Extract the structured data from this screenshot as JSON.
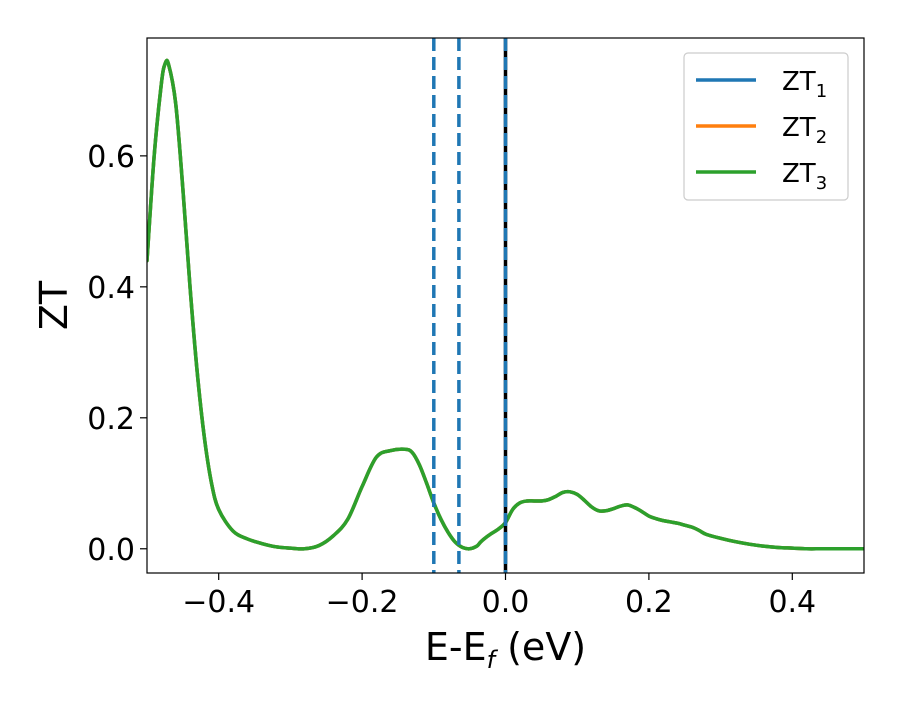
{
  "chart_data": {
    "type": "line",
    "title": "",
    "xlabel": {
      "main": "E-E",
      "sub": "f",
      "suffix": " (eV)"
    },
    "ylabel": "ZT",
    "xlim": [
      -0.5,
      0.5
    ],
    "ylim": [
      -0.037,
      0.78
    ],
    "x_ticks": [
      {
        "value": -0.4,
        "label": "−0.4"
      },
      {
        "value": -0.2,
        "label": "−0.2"
      },
      {
        "value": 0.0,
        "label": "0.0"
      },
      {
        "value": 0.2,
        "label": "0.2"
      },
      {
        "value": 0.4,
        "label": "0.4"
      }
    ],
    "y_ticks": [
      {
        "value": 0.0,
        "label": "0.0"
      },
      {
        "value": 0.2,
        "label": "0.2"
      },
      {
        "value": 0.4,
        "label": "0.4"
      },
      {
        "value": 0.6,
        "label": "0.6"
      }
    ],
    "grid": false,
    "legend_position": "top-right",
    "series": [
      {
        "name": "ZT",
        "name_sub": "1",
        "color": "#1f77b4",
        "x": [
          -0.5,
          -0.49,
          -0.48,
          -0.475,
          -0.47,
          -0.46,
          -0.45,
          -0.44,
          -0.43,
          -0.42,
          -0.41,
          -0.4,
          -0.39,
          -0.38,
          -0.37,
          -0.36,
          -0.35,
          -0.34,
          -0.33,
          -0.32,
          -0.31,
          -0.3,
          -0.29,
          -0.28,
          -0.27,
          -0.26,
          -0.25,
          -0.24,
          -0.23,
          -0.22,
          -0.21,
          -0.2,
          -0.19,
          -0.18,
          -0.17,
          -0.16,
          -0.15,
          -0.14,
          -0.135,
          -0.13,
          -0.12,
          -0.11,
          -0.1,
          -0.09,
          -0.08,
          -0.07,
          -0.06,
          -0.05,
          -0.04,
          -0.035,
          -0.03,
          -0.02,
          -0.01,
          0.0,
          0.01,
          0.02,
          0.03,
          0.04,
          0.05,
          0.06,
          0.07,
          0.08,
          0.09,
          0.1,
          0.11,
          0.12,
          0.13,
          0.14,
          0.15,
          0.16,
          0.17,
          0.18,
          0.19,
          0.2,
          0.21,
          0.22,
          0.23,
          0.24,
          0.25,
          0.26,
          0.27,
          0.28,
          0.3,
          0.32,
          0.34,
          0.36,
          0.38,
          0.4,
          0.42,
          0.44,
          0.46,
          0.48,
          0.5
        ],
        "y": [
          0.44,
          0.6,
          0.71,
          0.74,
          0.74,
          0.68,
          0.55,
          0.4,
          0.27,
          0.17,
          0.1,
          0.065,
          0.043,
          0.029,
          0.02,
          0.014,
          0.01,
          0.006,
          0.003,
          0.001,
          0.0,
          0.001,
          0.006,
          0.015,
          0.028,
          0.045,
          0.067,
          0.093,
          0.118,
          0.138,
          0.15,
          0.153,
          0.145,
          0.126,
          0.102,
          0.075,
          0.05,
          0.028,
          0.017,
          0.01,
          0.001,
          0.003,
          0.012,
          0.026,
          0.041,
          0.056,
          0.068,
          0.074,
          0.075,
          0.075,
          0.075,
          0.075,
          0.078,
          0.083,
          0.087,
          0.087,
          0.08,
          0.07,
          0.062,
          0.058,
          0.058,
          0.062,
          0.066,
          0.067,
          0.063,
          0.056,
          0.049,
          0.045,
          0.042,
          0.04,
          0.037,
          0.034,
          0.03,
          0.024,
          0.018,
          0.012,
          0.008,
          0.005,
          0.003,
          0.001,
          0.001,
          0.0,
          0.0,
          0.0,
          0.0,
          0.0,
          0.0,
          0.0,
          0.0,
          0.0,
          0.0,
          0.0,
          0.0
        ],
        "x_fixed": [
          -0.5,
          -0.49,
          -0.48,
          -0.475,
          -0.47,
          -0.46,
          -0.45,
          -0.44,
          -0.43,
          -0.42,
          -0.41,
          -0.4,
          -0.39,
          -0.38,
          -0.37,
          -0.36,
          -0.35,
          -0.34,
          -0.33,
          -0.32,
          -0.31,
          -0.3,
          -0.29,
          -0.28,
          -0.27,
          -0.26,
          -0.25,
          -0.24,
          -0.23,
          -0.22,
          -0.21,
          -0.2,
          -0.19,
          -0.18,
          -0.17,
          -0.16,
          -0.15,
          -0.14,
          -0.13,
          -0.12,
          -0.11,
          -0.1,
          -0.09,
          -0.08,
          -0.07,
          -0.06,
          -0.05,
          -0.04,
          -0.03,
          -0.02,
          -0.01,
          0.0,
          0.01,
          0.02,
          0.03,
          0.04,
          0.05,
          0.06,
          0.07,
          0.08,
          0.09,
          0.1,
          0.11,
          0.12,
          0.13,
          0.14,
          0.15,
          0.16,
          0.17,
          0.18,
          0.19,
          0.2,
          0.21,
          0.22,
          0.23,
          0.24,
          0.25,
          0.26,
          0.27,
          0.28,
          0.3,
          0.32,
          0.34,
          0.36,
          0.38,
          0.4,
          0.42,
          0.44,
          0.46,
          0.48,
          0.5
        ],
        "y_fixed": [
          0.44,
          0.6,
          0.71,
          0.74,
          0.74,
          0.68,
          0.55,
          0.4,
          0.27,
          0.17,
          0.1,
          0.065,
          0.043,
          0.029,
          0.02,
          0.014,
          0.01,
          0.006,
          0.003,
          0.001,
          0.0,
          0.001,
          0.003,
          0.008,
          0.018,
          0.032,
          0.05,
          0.072,
          0.096,
          0.12,
          0.14,
          0.152,
          0.15,
          0.14,
          0.12,
          0.09,
          0.06,
          0.035,
          0.012,
          0.0,
          0.005,
          0.02,
          0.04,
          0.058,
          0.07,
          0.074,
          0.074,
          0.075,
          0.075,
          0.078,
          0.083,
          0.087,
          0.087,
          0.078,
          0.068,
          0.06,
          0.058,
          0.06,
          0.065,
          0.067,
          0.062,
          0.055,
          0.049,
          0.045,
          0.042,
          0.04,
          0.037,
          0.034,
          0.03,
          0.024,
          0.018,
          0.012,
          0.008,
          0.005,
          0.003,
          0.001,
          0.001,
          0.0,
          0.0,
          0.0,
          0.0,
          0.0,
          0.0,
          0.0,
          0.0,
          0.0,
          0.0,
          0.0,
          0.0,
          0.0,
          0.0
        ],
        "x_curve": [
          -0.5,
          -0.49,
          -0.48,
          -0.475,
          -0.47,
          -0.46,
          -0.45,
          -0.44,
          -0.43,
          -0.42,
          -0.41,
          -0.4,
          -0.38,
          -0.36,
          -0.34,
          -0.32,
          -0.3,
          -0.28,
          -0.26,
          -0.24,
          -0.22,
          -0.2,
          -0.18,
          -0.16,
          -0.14,
          -0.13,
          -0.12,
          -0.11,
          -0.1,
          -0.09,
          -0.08,
          -0.07,
          -0.06,
          -0.05,
          -0.04,
          -0.035,
          -0.03,
          -0.02,
          -0.01,
          0.0,
          0.01,
          0.02,
          0.03,
          0.04,
          0.05,
          0.06,
          0.07,
          0.08,
          0.09,
          0.1,
          0.11,
          0.12,
          0.13,
          0.14,
          0.15,
          0.16,
          0.17,
          0.18,
          0.19,
          0.2,
          0.21,
          0.22,
          0.23,
          0.24,
          0.25,
          0.26,
          0.27,
          0.28,
          0.3,
          0.32,
          0.34,
          0.36,
          0.38,
          0.4,
          0.42,
          0.44,
          0.46,
          0.48,
          0.5
        ],
        "y_curve": [
          0.44,
          0.6,
          0.71,
          0.74,
          0.74,
          0.68,
          0.55,
          0.4,
          0.27,
          0.17,
          0.1,
          0.06,
          0.027,
          0.015,
          0.008,
          0.003,
          0.001,
          0.0,
          0.005,
          0.02,
          0.045,
          0.095,
          0.14,
          0.15,
          0.152,
          0.147,
          0.128,
          0.1,
          0.07,
          0.045,
          0.025,
          0.01,
          0.002,
          0.0,
          0.004,
          0.01,
          0.015,
          0.023,
          0.03,
          0.04,
          0.06,
          0.07,
          0.073,
          0.073,
          0.073,
          0.075,
          0.08,
          0.086,
          0.087,
          0.083,
          0.074,
          0.064,
          0.058,
          0.058,
          0.061,
          0.065,
          0.067,
          0.063,
          0.057,
          0.05,
          0.046,
          0.043,
          0.041,
          0.039,
          0.036,
          0.033,
          0.028,
          0.022,
          0.016,
          0.011,
          0.007,
          0.004,
          0.002,
          0.001,
          0.0,
          0.0,
          0.0,
          0.0,
          0.0
        ]
      },
      {
        "name": "ZT",
        "name_sub": "2",
        "color": "#ff7f0e"
      },
      {
        "name": "ZT",
        "name_sub": "3",
        "color": "#2ca02c"
      }
    ],
    "vlines": [
      {
        "x": -0.1,
        "style": "dashed",
        "color": "#1f77b4"
      },
      {
        "x": -0.065,
        "style": "dashed",
        "color": "#1f77b4"
      },
      {
        "x": 0.0,
        "style": "solid",
        "color": "#000000"
      },
      {
        "x": 0.0,
        "style": "dashed",
        "color": "#1f77b4"
      }
    ]
  }
}
